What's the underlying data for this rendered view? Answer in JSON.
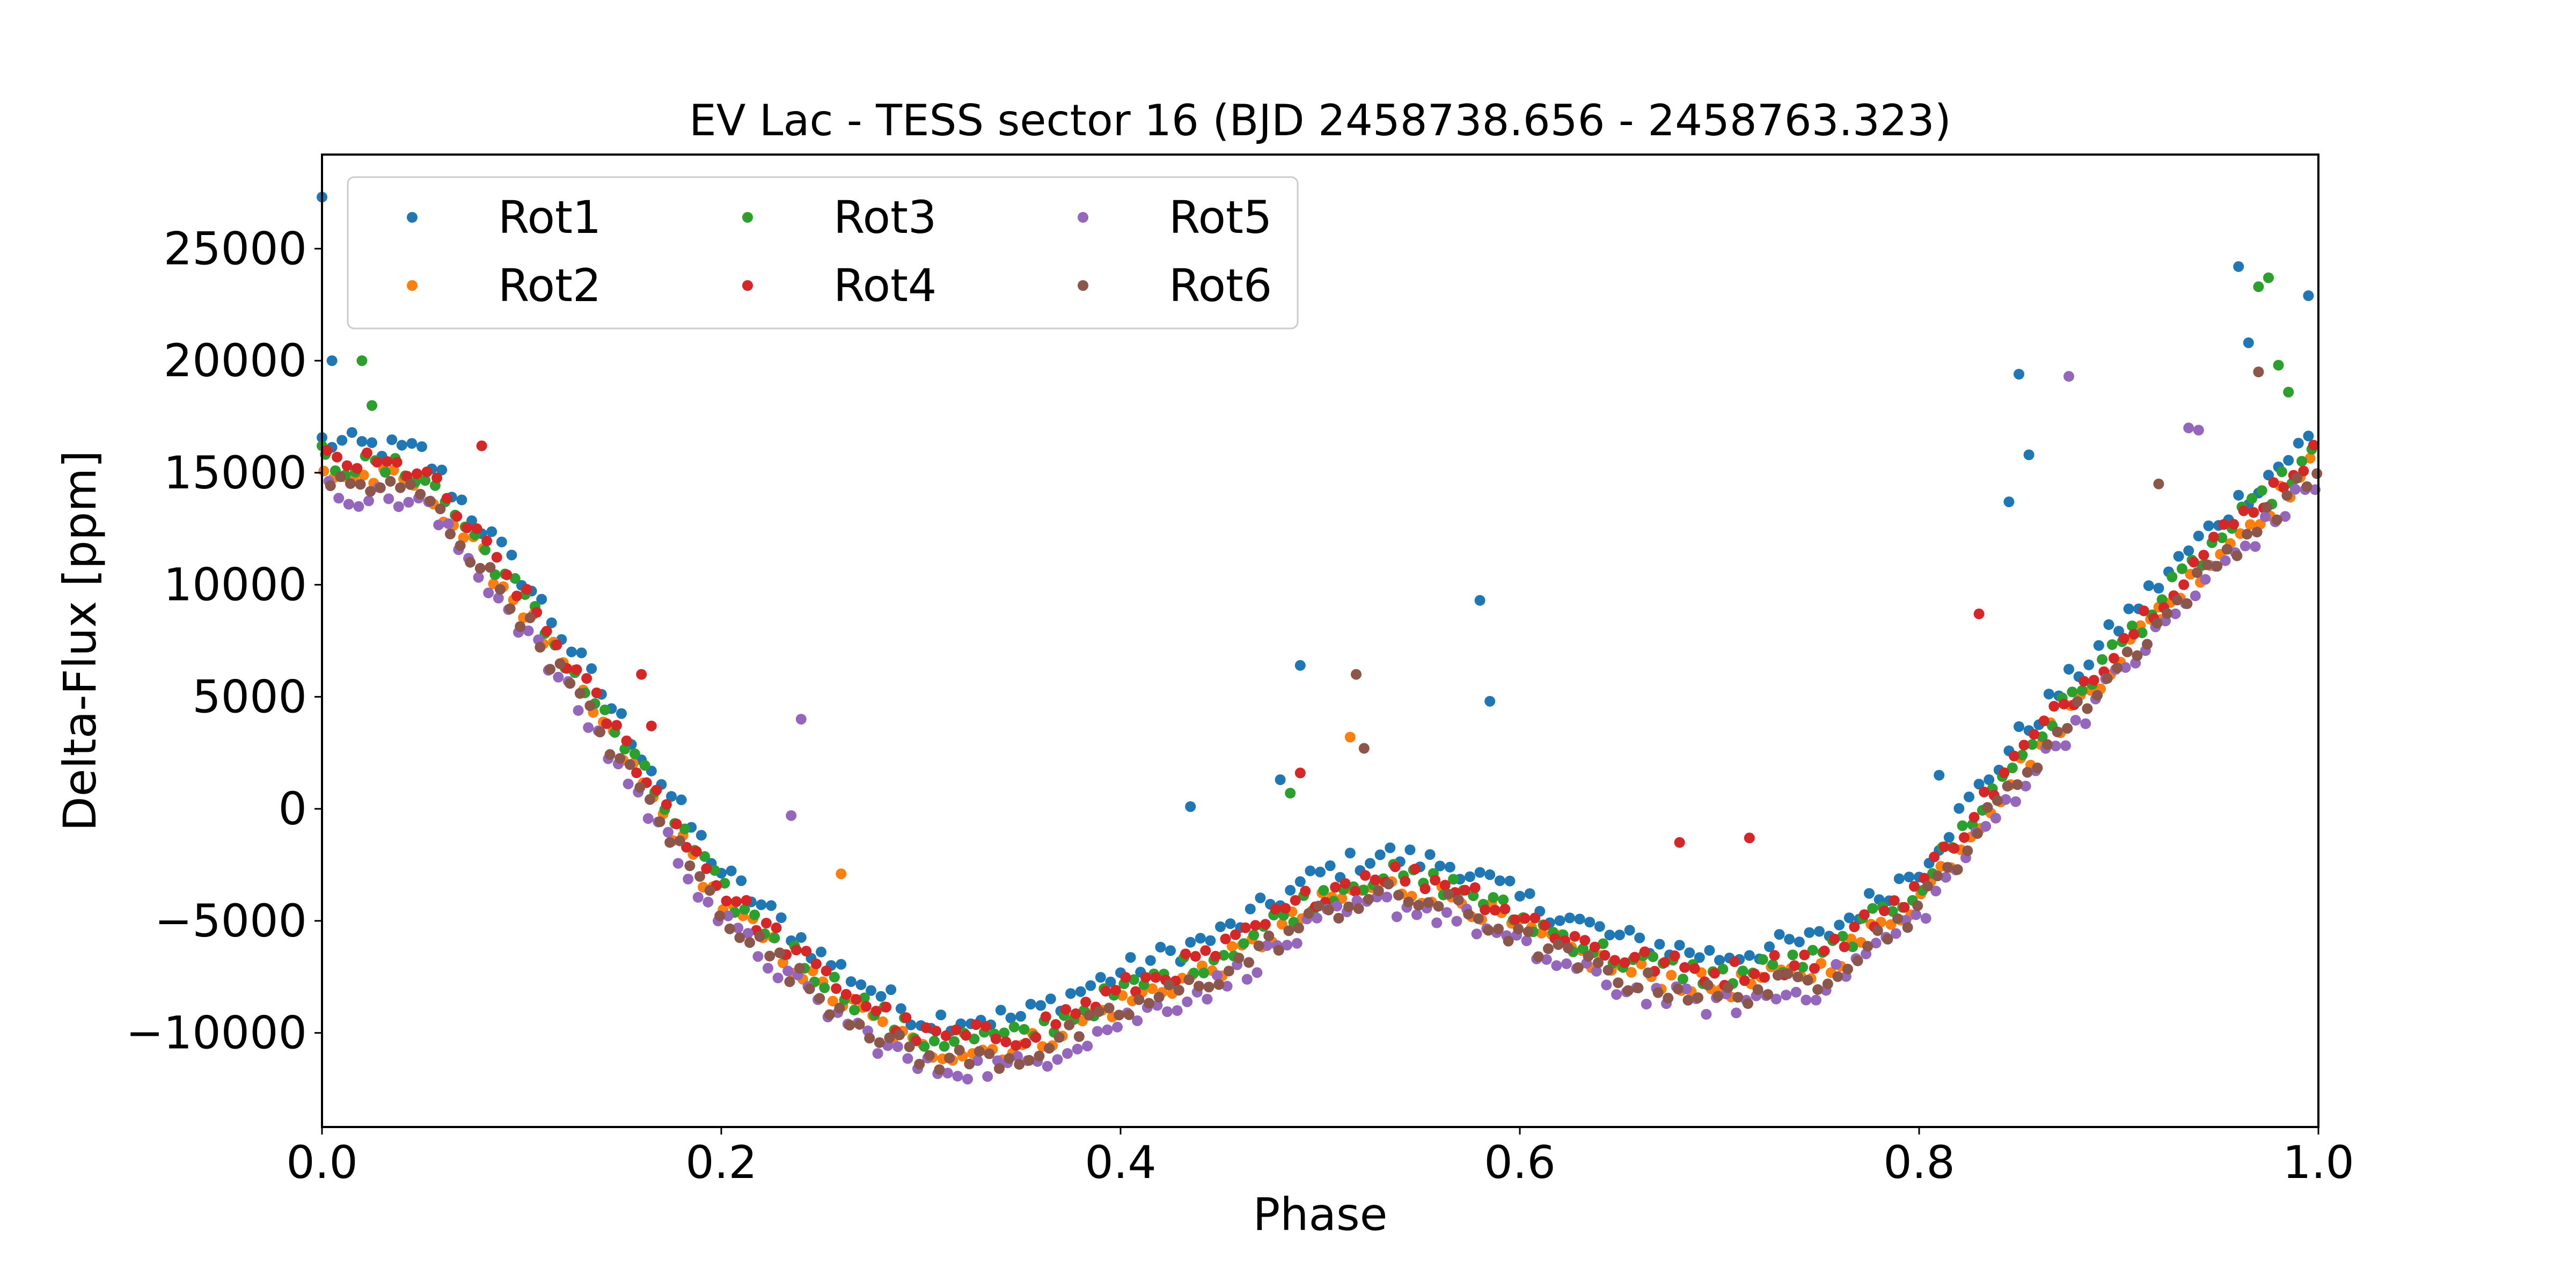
{
  "chart_data": {
    "type": "scatter",
    "title": "EV Lac - TESS sector 16 (BJD 2458738.656 - 2458763.323)",
    "xlabel": "Phase",
    "ylabel": "Delta-Flux [ppm]",
    "xlim": [
      0.0,
      1.0
    ],
    "ylim": [
      -14200,
      29200
    ],
    "xticks": [
      0.0,
      0.2,
      0.4,
      0.6,
      0.8,
      1.0
    ],
    "xtick_labels": [
      "0.0",
      "0.2",
      "0.4",
      "0.6",
      "0.8",
      "1.0"
    ],
    "yticks": [
      -10000,
      -5000,
      0,
      5000,
      10000,
      15000,
      20000,
      25000
    ],
    "ytick_labels": [
      "−10000",
      "−5000",
      "0",
      "5000",
      "10000",
      "15000",
      "20000",
      "25000"
    ],
    "grid": false,
    "legend": {
      "position": "top-left",
      "columns": 3
    },
    "series": [
      {
        "name": "Rot1",
        "color": "#1f77b4",
        "offset": 1400,
        "amp": 1.0,
        "outliers": [
          [
            0.0,
            27300
          ],
          [
            0.005,
            20000
          ],
          [
            0.48,
            1300
          ],
          [
            0.435,
            100
          ],
          [
            0.49,
            6400
          ],
          [
            0.58,
            9300
          ],
          [
            0.585,
            4800
          ],
          [
            0.81,
            1500
          ],
          [
            0.845,
            13700
          ],
          [
            0.85,
            19400
          ],
          [
            0.855,
            15800
          ],
          [
            0.96,
            24200
          ],
          [
            0.965,
            20800
          ],
          [
            0.995,
            22900
          ]
        ]
      },
      {
        "name": "Rot2",
        "color": "#ff7f0e",
        "offset": 0,
        "amp": 1.0,
        "outliers": [
          [
            0.26,
            -2900
          ],
          [
            0.515,
            3200
          ],
          [
            0.92,
            9000
          ]
        ]
      },
      {
        "name": "Rot3",
        "color": "#2ca02c",
        "offset": 500,
        "amp": 1.0,
        "outliers": [
          [
            0.0,
            16200
          ],
          [
            0.02,
            20000
          ],
          [
            0.025,
            18000
          ],
          [
            0.485,
            700
          ],
          [
            0.97,
            23300
          ],
          [
            0.975,
            23700
          ],
          [
            0.98,
            19800
          ],
          [
            0.985,
            18600
          ]
        ]
      },
      {
        "name": "Rot4",
        "color": "#d62728",
        "offset": 600,
        "amp": 1.0,
        "outliers": [
          [
            0.08,
            16200
          ],
          [
            0.16,
            6000
          ],
          [
            0.165,
            3700
          ],
          [
            0.49,
            1600
          ],
          [
            0.68,
            -1500
          ],
          [
            0.715,
            -1300
          ],
          [
            0.83,
            8700
          ]
        ]
      },
      {
        "name": "Rot5",
        "color": "#9467bd",
        "offset": -800,
        "amp": 1.0,
        "outliers": [
          [
            0.235,
            -300
          ],
          [
            0.24,
            4000
          ],
          [
            0.875,
            19300
          ],
          [
            0.935,
            17000
          ],
          [
            0.94,
            16900
          ]
        ]
      },
      {
        "name": "Rot6",
        "color": "#8c564b",
        "offset": -400,
        "amp": 1.0,
        "outliers": [
          [
            0.518,
            6000
          ],
          [
            0.522,
            2700
          ],
          [
            0.92,
            14500
          ],
          [
            0.97,
            19500
          ]
        ]
      }
    ],
    "trend": [
      [
        0.0,
        15000
      ],
      [
        0.05,
        14500
      ],
      [
        0.1,
        9000
      ],
      [
        0.15,
        2500
      ],
      [
        0.2,
        -4200
      ],
      [
        0.25,
        -8000
      ],
      [
        0.3,
        -10800
      ],
      [
        0.35,
        -10700
      ],
      [
        0.4,
        -8700
      ],
      [
        0.45,
        -7000
      ],
      [
        0.5,
        -4300
      ],
      [
        0.53,
        -3400
      ],
      [
        0.57,
        -4000
      ],
      [
        0.6,
        -5400
      ],
      [
        0.65,
        -7200
      ],
      [
        0.7,
        -8000
      ],
      [
        0.75,
        -7200
      ],
      [
        0.8,
        -4000
      ],
      [
        0.85,
        1800
      ],
      [
        0.9,
        6800
      ],
      [
        0.95,
        11500
      ],
      [
        1.0,
        15500
      ]
    ]
  }
}
